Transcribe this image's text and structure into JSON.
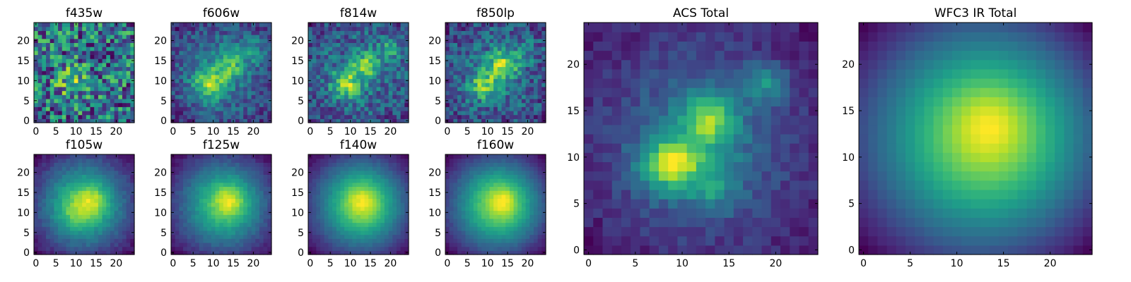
{
  "figure": {
    "colormap": "viridis",
    "colormap_stops": [
      "#440154",
      "#482878",
      "#3e4989",
      "#31688e",
      "#26828e",
      "#1f9e89",
      "#35b779",
      "#6ece58",
      "#b5de2b",
      "#fde725"
    ],
    "pixel_grid": [
      25,
      25
    ],
    "background": "#ffffff"
  },
  "chart_data": [
    {
      "type": "heatmap",
      "title": "f435w",
      "x_ticks": [
        0,
        5,
        10,
        15,
        20
      ],
      "y_ticks": [
        0,
        5,
        10,
        15,
        20
      ],
      "xlim": [
        -0.5,
        24.5
      ],
      "ylim": [
        -0.5,
        24.5
      ],
      "model": {
        "noise": 0.62,
        "background": 0.55,
        "sources": [
          {
            "x": 9,
            "y": 10,
            "amp": 0.22,
            "sigma": 3
          }
        ],
        "edge_fade": 0.0,
        "seed": 11
      }
    },
    {
      "type": "heatmap",
      "title": "f606w",
      "x_ticks": [
        0,
        5,
        10,
        15,
        20
      ],
      "y_ticks": [
        0,
        5,
        10,
        15,
        20
      ],
      "xlim": [
        -0.5,
        24.5
      ],
      "ylim": [
        -0.5,
        24.5
      ],
      "model": {
        "noise": 0.22,
        "background": 0.35,
        "sources": [
          {
            "x": 9,
            "y": 9,
            "amp": 0.35,
            "sigma": 2.8
          },
          {
            "x": 14,
            "y": 14,
            "amp": 0.25,
            "sigma": 2.5
          },
          {
            "x": 20,
            "y": 18,
            "amp": 0.15,
            "sigma": 2.5
          }
        ],
        "edge_fade": 0.2,
        "seed": 22
      }
    },
    {
      "type": "heatmap",
      "title": "f814w",
      "x_ticks": [
        0,
        5,
        10,
        15,
        20
      ],
      "y_ticks": [
        0,
        5,
        10,
        15,
        20
      ],
      "xlim": [
        -0.5,
        24.5
      ],
      "ylim": [
        -0.5,
        24.5
      ],
      "model": {
        "noise": 0.3,
        "background": 0.35,
        "sources": [
          {
            "x": 9,
            "y": 9,
            "amp": 0.4,
            "sigma": 2.5
          },
          {
            "x": 14,
            "y": 14,
            "amp": 0.35,
            "sigma": 2.2
          },
          {
            "x": 20,
            "y": 18,
            "amp": 0.2,
            "sigma": 2
          }
        ],
        "edge_fade": 0.15,
        "seed": 33
      }
    },
    {
      "type": "heatmap",
      "title": "f850lp",
      "x_ticks": [
        0,
        5,
        10,
        15,
        20
      ],
      "y_ticks": [
        0,
        5,
        10,
        15,
        20
      ],
      "xlim": [
        -0.5,
        24.5
      ],
      "ylim": [
        -0.5,
        24.5
      ],
      "model": {
        "noise": 0.32,
        "background": 0.35,
        "sources": [
          {
            "x": 9,
            "y": 9,
            "amp": 0.35,
            "sigma": 2.6
          },
          {
            "x": 14,
            "y": 14,
            "amp": 0.4,
            "sigma": 2.6
          },
          {
            "x": 20,
            "y": 18,
            "amp": 0.15,
            "sigma": 2
          }
        ],
        "edge_fade": 0.15,
        "seed": 44
      }
    },
    {
      "type": "heatmap",
      "title": "f105w",
      "x_ticks": [
        0,
        5,
        10,
        15,
        20
      ],
      "y_ticks": [
        0,
        5,
        10,
        15,
        20
      ],
      "xlim": [
        -0.5,
        24.5
      ],
      "ylim": [
        -0.5,
        24.5
      ],
      "model": {
        "noise": 0.12,
        "background": 0.12,
        "sources": [
          {
            "x": 12,
            "y": 12,
            "amp": 0.6,
            "sigma": 6.5
          },
          {
            "x": 14,
            "y": 13,
            "amp": 0.3,
            "sigma": 2.5
          },
          {
            "x": 9,
            "y": 10,
            "amp": 0.15,
            "sigma": 2.5
          }
        ],
        "edge_fade": 0.35,
        "seed": 55
      }
    },
    {
      "type": "heatmap",
      "title": "f125w",
      "x_ticks": [
        0,
        5,
        10,
        15,
        20
      ],
      "y_ticks": [
        0,
        5,
        10,
        15,
        20
      ],
      "xlim": [
        -0.5,
        24.5
      ],
      "ylim": [
        -0.5,
        24.5
      ],
      "model": {
        "noise": 0.1,
        "background": 0.12,
        "sources": [
          {
            "x": 13,
            "y": 12,
            "amp": 0.6,
            "sigma": 6.5
          },
          {
            "x": 14,
            "y": 13,
            "amp": 0.3,
            "sigma": 2.5
          }
        ],
        "edge_fade": 0.35,
        "seed": 66
      }
    },
    {
      "type": "heatmap",
      "title": "f140w",
      "x_ticks": [
        0,
        5,
        10,
        15,
        20
      ],
      "y_ticks": [
        0,
        5,
        10,
        15,
        20
      ],
      "xlim": [
        -0.5,
        24.5
      ],
      "ylim": [
        -0.5,
        24.5
      ],
      "model": {
        "noise": 0.07,
        "background": 0.08,
        "sources": [
          {
            "x": 13,
            "y": 12,
            "amp": 0.75,
            "sigma": 6.5
          },
          {
            "x": 13,
            "y": 13,
            "amp": 0.2,
            "sigma": 2.5
          }
        ],
        "edge_fade": 0.4,
        "seed": 77
      }
    },
    {
      "type": "heatmap",
      "title": "f160w",
      "x_ticks": [
        0,
        5,
        10,
        15,
        20
      ],
      "y_ticks": [
        0,
        5,
        10,
        15,
        20
      ],
      "xlim": [
        -0.5,
        24.5
      ],
      "ylim": [
        -0.5,
        24.5
      ],
      "model": {
        "noise": 0.07,
        "background": 0.05,
        "sources": [
          {
            "x": 13,
            "y": 12,
            "amp": 0.75,
            "sigma": 6.5
          },
          {
            "x": 14,
            "y": 13,
            "amp": 0.25,
            "sigma": 2.2
          }
        ],
        "edge_fade": 0.45,
        "seed": 88
      }
    },
    {
      "type": "heatmap",
      "title": "ACS Total",
      "x_ticks": [
        0,
        5,
        10,
        15,
        20
      ],
      "y_ticks": [
        0,
        5,
        10,
        15,
        20
      ],
      "xlim": [
        -0.5,
        24.5
      ],
      "ylim": [
        -0.5,
        24.5
      ],
      "model": {
        "noise": 0.14,
        "background": 0.4,
        "sources": [
          {
            "x": 8,
            "y": 9,
            "amp": 0.45,
            "sigma": 2.0
          },
          {
            "x": 10,
            "y": 10,
            "amp": 0.25,
            "sigma": 1.5
          },
          {
            "x": 13,
            "y": 14,
            "amp": 0.45,
            "sigma": 1.8
          },
          {
            "x": 13,
            "y": 7,
            "amp": 0.25,
            "sigma": 2.0
          },
          {
            "x": 19,
            "y": 18,
            "amp": 0.3,
            "sigma": 1.4
          },
          {
            "x": 12,
            "y": 12,
            "amp": 0.2,
            "sigma": 5
          }
        ],
        "edge_fade": 0.15,
        "seed": 99
      }
    },
    {
      "type": "heatmap",
      "title": "WFC3 IR Total",
      "x_ticks": [
        0,
        5,
        10,
        15,
        20
      ],
      "y_ticks": [
        0,
        5,
        10,
        15,
        20
      ],
      "xlim": [
        -0.5,
        24.5
      ],
      "ylim": [
        -0.5,
        24.5
      ],
      "model": {
        "noise": 0.015,
        "background": 0.02,
        "sources": [
          {
            "x": 13.5,
            "y": 12.5,
            "amp": 0.78,
            "sigma": 7.0
          },
          {
            "x": 13.5,
            "y": 13.5,
            "amp": 0.2,
            "sigma": 2.4
          }
        ],
        "edge_fade": 0.55,
        "seed": 123
      }
    }
  ]
}
